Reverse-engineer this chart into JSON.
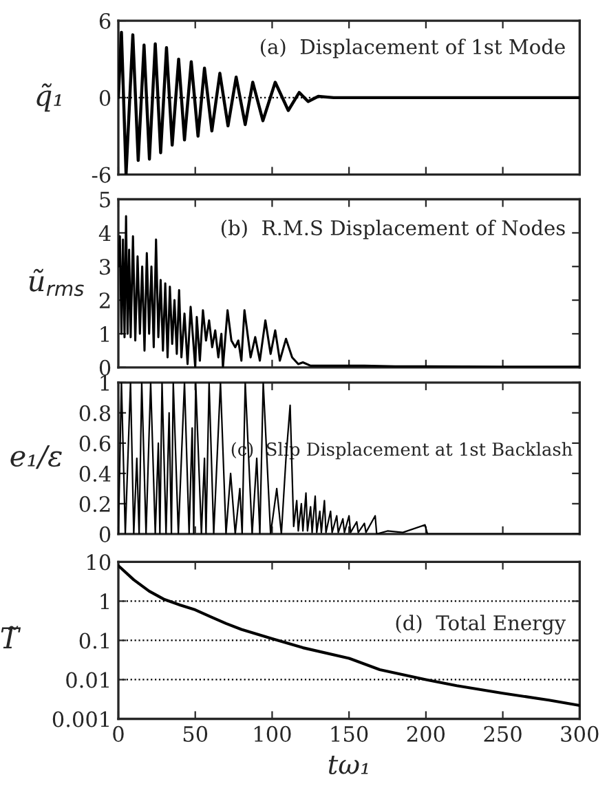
{
  "chart_data": [
    {
      "type": "line",
      "title": "(a)  Displacement of 1st Mode",
      "ylabel": "q̃₁",
      "xlim": [
        0,
        300
      ],
      "xticks": [
        0,
        50,
        100,
        150,
        200,
        250,
        300
      ],
      "ylim": [
        -6,
        6
      ],
      "yticks": [
        -6,
        0,
        6
      ],
      "tick_labels": "y",
      "ref_lines": [
        {
          "axis": "y",
          "value": 0,
          "line_style": "dotted",
          "color": "#000000"
        }
      ],
      "x": [
        0,
        2,
        5,
        9.4,
        12.9,
        16.7,
        20.2,
        24,
        27.5,
        31.3,
        35,
        39.2,
        43,
        47.4,
        51.8,
        56,
        60.8,
        66,
        71.3,
        76.6,
        82.5,
        87.4,
        94,
        102,
        110.5,
        117.6,
        123.4,
        130,
        140,
        150,
        175,
        200,
        225,
        250,
        275,
        300
      ],
      "series": [
        {
          "color": "#000000",
          "values": [
            0,
            5.1,
            -6,
            4.9,
            -4.9,
            4.1,
            -4.8,
            4.2,
            -4.3,
            3.9,
            -3.7,
            3.0,
            -3.3,
            2.8,
            -3.0,
            2.3,
            -2.6,
            1.9,
            -2.2,
            1.6,
            -2.1,
            1.2,
            -1.8,
            1.2,
            -1.0,
            0.4,
            -0.3,
            0.1,
            0,
            0,
            0,
            0,
            0,
            0,
            0,
            0
          ]
        }
      ]
    },
    {
      "type": "line",
      "title": "(b)  R.M.S Displacement of Nodes",
      "ylabel": "ũ$_{rms}$",
      "xlim": [
        0,
        300
      ],
      "xticks": [
        0,
        50,
        100,
        150,
        200,
        250,
        300
      ],
      "ylim": [
        0,
        5
      ],
      "yticks": [
        0,
        1,
        2,
        3,
        4,
        5
      ],
      "tick_labels": "y",
      "x": [
        0,
        1,
        2,
        3,
        4,
        5,
        6,
        7,
        8,
        9.5,
        11,
        12.5,
        14,
        15.5,
        17,
        18.5,
        20,
        21.5,
        23,
        24.5,
        26,
        27.5,
        29,
        30.5,
        32,
        33.5,
        35,
        36.5,
        38,
        39.5,
        41,
        43,
        45,
        47,
        50,
        51,
        53,
        55,
        57,
        59,
        61,
        63,
        65,
        67,
        68,
        71,
        73.5,
        76,
        78,
        80,
        82,
        86,
        89,
        92,
        95.6,
        99,
        102,
        105,
        109,
        113,
        117,
        120,
        125,
        140,
        160,
        180,
        200,
        250,
        300
      ],
      "series": [
        {
          "color": "#000000",
          "values": [
            3.0,
            3.9,
            1.0,
            3.8,
            0.9,
            4.5,
            1.0,
            3.5,
            0.9,
            3.9,
            0.8,
            3.3,
            1.0,
            3.0,
            0.5,
            3.4,
            1.0,
            3.0,
            0.6,
            3.8,
            0.9,
            2.6,
            0.5,
            2.5,
            0.3,
            2.4,
            0.7,
            2.0,
            0.4,
            2.3,
            0.3,
            1.6,
            0.1,
            1.8,
            0.0,
            1.5,
            0.2,
            1.7,
            0.8,
            1.4,
            0.6,
            1.1,
            0.3,
            1.0,
            0.0,
            1.7,
            0.8,
            0.6,
            0.8,
            0.2,
            1.7,
            0.3,
            0.9,
            0.2,
            1.4,
            0.4,
            1.1,
            0.2,
            0.85,
            0.3,
            0.1,
            0.15,
            0.05,
            0.05,
            0.05,
            0.03,
            0.03,
            0.02,
            0.02
          ]
        }
      ]
    },
    {
      "type": "line",
      "title": "(c)  Slip Displacement at 1st Backlash",
      "ylabel": "e₁/ε",
      "xlim": [
        0,
        300
      ],
      "xticks": [
        0,
        50,
        100,
        150,
        200,
        250,
        300
      ],
      "ylim": [
        0,
        1
      ],
      "yticks": [
        0,
        0.2,
        0.4,
        0.6,
        0.8,
        1
      ],
      "tick_labels": "y",
      "x": [
        0,
        2,
        4.5,
        7.9,
        10,
        12,
        13.5,
        15.2,
        18,
        21,
        24,
        26,
        27,
        28.4,
        31,
        33,
        34.5,
        35.7,
        39,
        43,
        46,
        48,
        49,
        50.3,
        54,
        56,
        57,
        59,
        62,
        66.4,
        70,
        73,
        76,
        79,
        80.5,
        82.5,
        87,
        90,
        92,
        94.2,
        99,
        103,
        106,
        109,
        111.7,
        114,
        116,
        117,
        119,
        120,
        122,
        123,
        125,
        126,
        128,
        129,
        131,
        132,
        134,
        135,
        138,
        139,
        142,
        143,
        146,
        147,
        150,
        151,
        155,
        156,
        160,
        161,
        167,
        168,
        175,
        185,
        199.4,
        201,
        220,
        300
      ],
      "series": [
        {
          "color": "#000000",
          "values": [
            0,
            1,
            0,
            1,
            0,
            0.5,
            0,
            1,
            0,
            1,
            0,
            0.6,
            0,
            1,
            0,
            0.8,
            0,
            1,
            0,
            1,
            0,
            0.7,
            0,
            1,
            0,
            0.5,
            0,
            1,
            0,
            1,
            0,
            0.4,
            0,
            0.3,
            0,
            1,
            0,
            0.5,
            0,
            1,
            0,
            0.3,
            0,
            0.5,
            0.85,
            0.05,
            0.22,
            0.02,
            0.2,
            0.02,
            0.27,
            0.02,
            0.18,
            0.01,
            0.25,
            0.01,
            0.15,
            0.01,
            0.22,
            0.01,
            0.15,
            0.01,
            0.12,
            0.01,
            0.1,
            0.01,
            0.12,
            0.01,
            0.08,
            0.01,
            0.07,
            0.01,
            0.12,
            0,
            0.02,
            0.01,
            0.06,
            0,
            0,
            0
          ]
        }
      ]
    },
    {
      "type": "line",
      "title": "(d)  Total Energy",
      "ylabel": "T̃",
      "xlabel": "tω₁",
      "log": "y",
      "grid": "y",
      "xlim": [
        0,
        300
      ],
      "xticks": [
        0,
        50,
        100,
        150,
        200,
        250,
        300
      ],
      "ylim": [
        0.001,
        10
      ],
      "yticks": [
        0.001,
        0.01,
        0.1,
        1,
        10
      ],
      "x": [
        0,
        10,
        20,
        30,
        40,
        50,
        60,
        70,
        80,
        100,
        120,
        150,
        170,
        200,
        220,
        250,
        280,
        300
      ],
      "series": [
        {
          "color": "#000000",
          "values": [
            8,
            3.5,
            1.8,
            1.1,
            0.8,
            0.6,
            0.4,
            0.27,
            0.19,
            0.11,
            0.065,
            0.035,
            0.018,
            0.01,
            0.007,
            0.0045,
            0.003,
            0.0022
          ]
        }
      ]
    }
  ]
}
